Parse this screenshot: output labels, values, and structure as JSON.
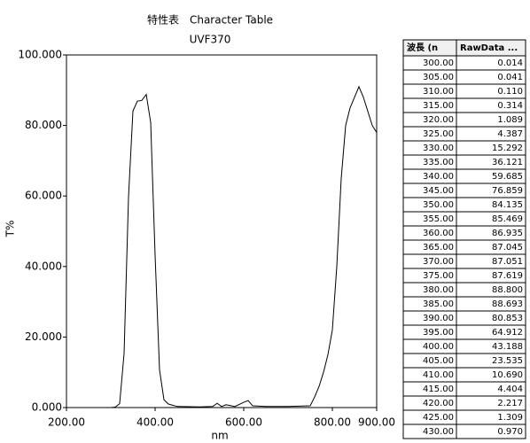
{
  "chart_data": {
    "type": "line",
    "title": "特性表　Character Table",
    "subtitle": "UVF370",
    "x_label": "nm",
    "y_label": "T%",
    "xlim": [
      200,
      900
    ],
    "xticks": [
      {
        "value": 200,
        "label": "200.00"
      },
      {
        "value": 400,
        "label": "400.00"
      },
      {
        "value": 600,
        "label": "600.00"
      },
      {
        "value": 800,
        "label": "800.00"
      },
      {
        "value": 900,
        "label": "900.00"
      }
    ],
    "ylim": [
      0,
      100
    ],
    "yticks": [
      {
        "value": 0,
        "label": "0.000"
      },
      {
        "value": 20,
        "label": "20.000"
      },
      {
        "value": 40,
        "label": "40.000"
      },
      {
        "value": 60,
        "label": "60.000"
      },
      {
        "value": 80,
        "label": "80.000"
      },
      {
        "value": 100,
        "label": "100.000"
      }
    ],
    "color": "#000000",
    "x": [
      200,
      250,
      290,
      300,
      310,
      320,
      330,
      340,
      350,
      360,
      370,
      380,
      390,
      400,
      410,
      420,
      430,
      450,
      500,
      530,
      540,
      550,
      560,
      580,
      600,
      610,
      620,
      650,
      700,
      750,
      760,
      770,
      780,
      790,
      800,
      810,
      820,
      830,
      840,
      850,
      860,
      870,
      880,
      890,
      900
    ],
    "values": [
      0,
      0,
      0,
      0.01,
      0.11,
      1.09,
      15.3,
      59.7,
      84.1,
      86.9,
      87.1,
      88.8,
      80.9,
      43.2,
      10.7,
      2.2,
      1.0,
      0.3,
      0.2,
      0.3,
      1.2,
      0.3,
      0.8,
      0.3,
      1.5,
      2.0,
      0.5,
      0.3,
      0.3,
      0.5,
      3,
      6,
      10,
      15,
      22,
      40,
      65,
      80,
      85,
      88,
      91,
      88,
      84,
      80,
      78
    ]
  },
  "table": {
    "columns": [
      "波長 (n",
      "RawData ..."
    ],
    "rows": [
      [
        "300.00",
        "0.014"
      ],
      [
        "305.00",
        "0.041"
      ],
      [
        "310.00",
        "0.110"
      ],
      [
        "315.00",
        "0.314"
      ],
      [
        "320.00",
        "1.089"
      ],
      [
        "325.00",
        "4.387"
      ],
      [
        "330.00",
        "15.292"
      ],
      [
        "335.00",
        "36.121"
      ],
      [
        "340.00",
        "59.685"
      ],
      [
        "345.00",
        "76.859"
      ],
      [
        "350.00",
        "84.135"
      ],
      [
        "355.00",
        "85.469"
      ],
      [
        "360.00",
        "86.935"
      ],
      [
        "365.00",
        "87.045"
      ],
      [
        "370.00",
        "87.051"
      ],
      [
        "375.00",
        "87.619"
      ],
      [
        "380.00",
        "88.800"
      ],
      [
        "385.00",
        "88.693"
      ],
      [
        "390.00",
        "80.853"
      ],
      [
        "395.00",
        "64.912"
      ],
      [
        "400.00",
        "43.188"
      ],
      [
        "405.00",
        "23.535"
      ],
      [
        "410.00",
        "10.690"
      ],
      [
        "415.00",
        "4.404"
      ],
      [
        "420.00",
        "2.217"
      ],
      [
        "425.00",
        "1.309"
      ],
      [
        "430.00",
        "0.970"
      ]
    ]
  }
}
